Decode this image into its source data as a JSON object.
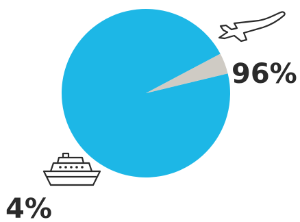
{
  "chart_data": {
    "type": "pie",
    "slices": [
      {
        "label": "96%",
        "value": 96,
        "icon": "airplane-icon",
        "color": "#1db7e6"
      },
      {
        "label": "4%",
        "value": 4,
        "icon": "cruise-ship-icon",
        "color": "#cfcbc4"
      }
    ]
  }
}
